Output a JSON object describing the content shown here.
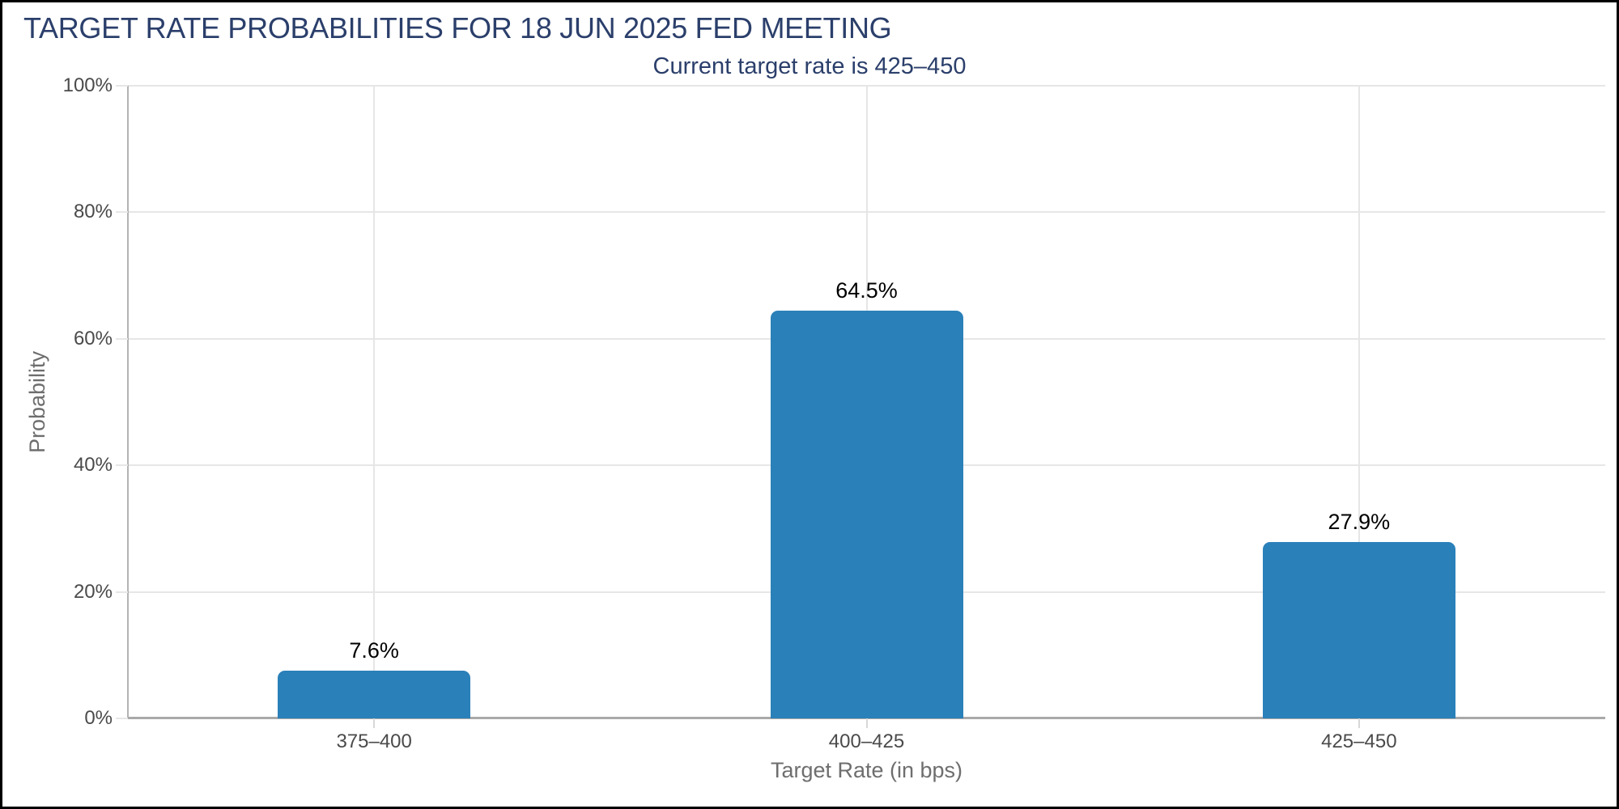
{
  "chart_data": {
    "type": "bar",
    "title": "TARGET RATE PROBABILITIES FOR 18 JUN 2025 FED MEETING",
    "subtitle": "Current target rate is 425–450",
    "categories": [
      "375–400",
      "400–425",
      "425–450"
    ],
    "values": [
      7.6,
      64.5,
      27.9
    ],
    "bar_labels": [
      "7.6%",
      "64.5%",
      "27.9%"
    ],
    "xlabel": "Target Rate (in bps)",
    "ylabel": "Probability",
    "ylim": [
      0,
      100
    ],
    "ytick_step": 20,
    "ytick_labels": [
      "0%",
      "20%",
      "40%",
      "60%",
      "80%",
      "100%"
    ],
    "grid": true,
    "legend": "none",
    "colors": {
      "bar": "#2a80b9",
      "heading": "#2b3f6b",
      "grid": "#e6e6e6",
      "axis_line_x": "#a9a9a9",
      "axis_line_y": "#b3b3b3",
      "tick_label": "#4a4a4a",
      "axis_title": "#6e6e6e",
      "data_label": "#000000",
      "frame": "#000000",
      "background": "#ffffff"
    }
  }
}
